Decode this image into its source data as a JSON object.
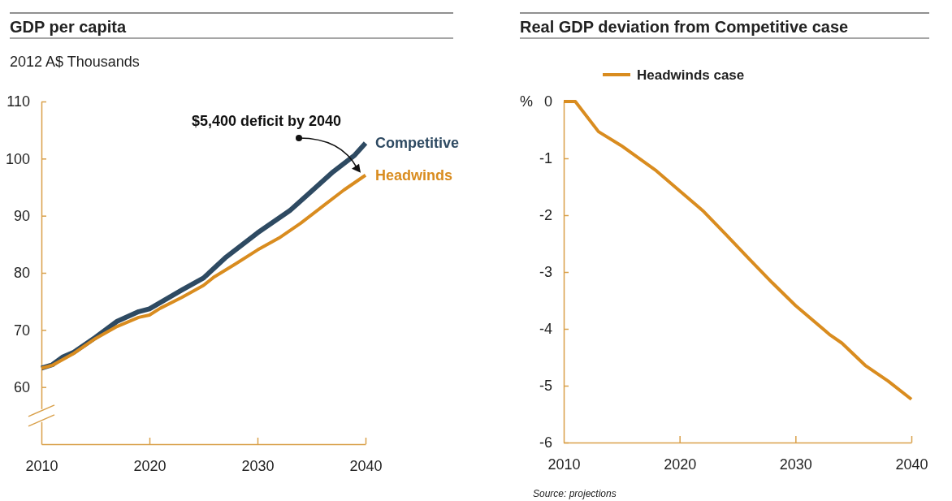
{
  "chart_data": [
    {
      "type": "line",
      "title": "GDP per capita",
      "ylabel": "2012 A$ Thousands",
      "xlim": [
        2010,
        2040
      ],
      "xticks": [
        2010,
        2020,
        2030,
        2040
      ],
      "ylim": [
        50,
        110
      ],
      "yticks": [
        60,
        70,
        80,
        90,
        100,
        110
      ],
      "legend": false,
      "series": [
        {
          "name": "Competitive",
          "color": "#2e4a62",
          "x": [
            2010,
            2011,
            2012,
            2013,
            2015,
            2017,
            2019,
            2020,
            2023,
            2025,
            2027,
            2030,
            2033,
            2035,
            2037,
            2039,
            2040
          ],
          "values": [
            63.3,
            63.9,
            65.3,
            66.1,
            68.7,
            71.5,
            73.2,
            73.7,
            77.0,
            79.1,
            82.6,
            87.0,
            90.9,
            94.3,
            97.7,
            100.6,
            102.7
          ]
        },
        {
          "name": "Headwinds",
          "color": "#d98c1f",
          "x": [
            2010,
            2011,
            2013,
            2015,
            2017,
            2019,
            2020,
            2021,
            2023,
            2025,
            2026,
            2028,
            2030,
            2032,
            2034,
            2036,
            2038,
            2040
          ],
          "values": [
            63.3,
            63.8,
            65.9,
            68.5,
            70.6,
            72.2,
            72.6,
            73.8,
            75.7,
            77.8,
            79.3,
            81.6,
            84.0,
            86.1,
            88.7,
            91.6,
            94.5,
            97.1
          ]
        }
      ],
      "annotations": [
        "$5,400 deficit by 2040"
      ]
    },
    {
      "type": "line",
      "title": "Real GDP deviation from Competitive case",
      "ylabel": "%",
      "xlim": [
        2010,
        2040
      ],
      "xticks": [
        2010,
        2020,
        2030,
        2040
      ],
      "ylim": [
        -6,
        0
      ],
      "yticks": [
        -6,
        -5,
        -4,
        -3,
        -2,
        -1,
        0
      ],
      "legend": "top",
      "series": [
        {
          "name": "Headwinds case",
          "color": "#d98c1f",
          "x": [
            2010,
            2011,
            2013,
            2015,
            2018,
            2020,
            2022,
            2024,
            2026,
            2028,
            2030,
            2033,
            2034,
            2036,
            2038,
            2040
          ],
          "values": [
            0,
            0,
            -0.53,
            -0.78,
            -1.22,
            -1.57,
            -1.92,
            -2.34,
            -2.77,
            -3.19,
            -3.59,
            -4.11,
            -4.25,
            -4.64,
            -4.92,
            -5.24
          ]
        }
      ],
      "annotations": [
        "Source:  projections"
      ]
    }
  ]
}
